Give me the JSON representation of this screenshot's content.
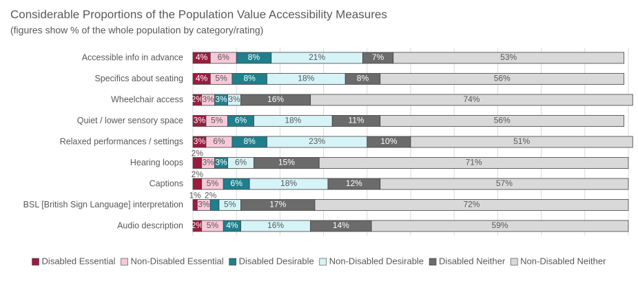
{
  "chart_data": {
    "type": "stacked_bar_horizontal",
    "title": "Considerable Proportions of the Population Value Accessibility Measures",
    "subtitle": "(figures show % of the whole population by category/rating)",
    "categories": [
      "Accessible info in advance",
      "Specifics about seating",
      "Wheelchair access",
      "Quiet / lower sensory space",
      "Relaxed performances / settings",
      "Hearing loops",
      "Captions",
      "BSL [British Sign Language] interpretation",
      "Audio description"
    ],
    "xlim": [
      0,
      101
    ],
    "xticks": [
      0,
      10,
      20,
      30,
      40,
      50,
      60,
      70,
      80,
      90,
      100
    ],
    "grid": true,
    "legend": "bottom",
    "series": [
      {
        "name": "Disabled Essential",
        "color": "#9b1b3f",
        "values": [
          4,
          4,
          2,
          3,
          3,
          2,
          2,
          1,
          2
        ],
        "value_labels": [
          "4%",
          "4%",
          "2%",
          "3%",
          "3%",
          "2%",
          "2%",
          "1%",
          "2%"
        ]
      },
      {
        "name": "Non-Disabled Essential",
        "color": "#f7c9d8",
        "values": [
          6,
          5,
          3,
          5,
          6,
          3,
          5,
          3,
          5
        ],
        "value_labels": [
          "6%",
          "5%",
          "3%",
          "5%",
          "6%",
          "3%",
          "5%",
          "3%",
          "5%"
        ]
      },
      {
        "name": "Disabled Desirable",
        "color": "#1f7f8c",
        "values": [
          8,
          8,
          3,
          6,
          8,
          3,
          6,
          2,
          4
        ],
        "value_labels": [
          "8%",
          "8%",
          "3%",
          "6%",
          "8%",
          "3%",
          "6%",
          "2%",
          "4%"
        ]
      },
      {
        "name": "Non-Disabled Desirable",
        "color": "#d6f3f7",
        "values": [
          21,
          18,
          3,
          18,
          23,
          6,
          18,
          5,
          16
        ],
        "value_labels": [
          "21%",
          "18%",
          "3%",
          "18%",
          "23%",
          "6%",
          "18%",
          "5%",
          "16%"
        ]
      },
      {
        "name": "Disabled Neither",
        "color": "#6b6b6b",
        "values": [
          7,
          8,
          16,
          11,
          10,
          15,
          12,
          17,
          14
        ],
        "value_labels": [
          "7%",
          "8%",
          "16%",
          "11%",
          "10%",
          "15%",
          "12%",
          "17%",
          "14%"
        ]
      },
      {
        "name": "Non-Disabled Neither",
        "color": "#d9d9d9",
        "values": [
          53,
          56,
          74,
          56,
          51,
          71,
          57,
          72,
          59
        ],
        "value_labels": [
          "53%",
          "56%",
          "74%",
          "56%",
          "51%",
          "71%",
          "57%",
          "72%",
          "59%"
        ]
      }
    ]
  }
}
